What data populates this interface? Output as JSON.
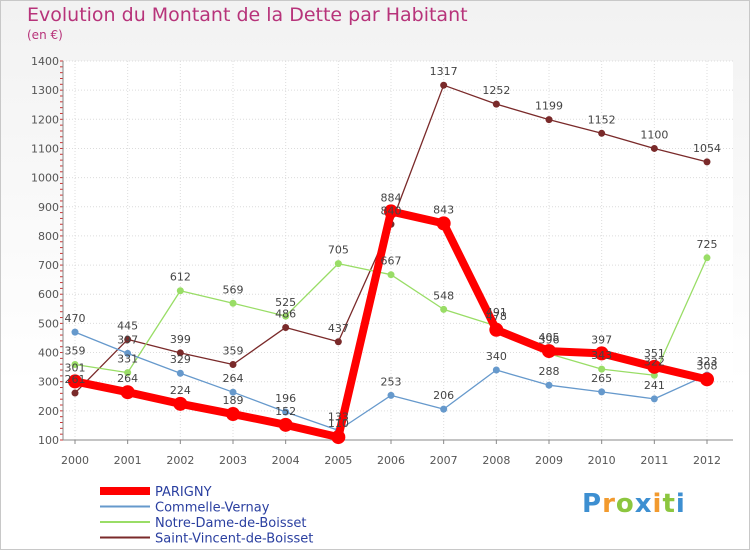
{
  "chart_data": {
    "type": "line",
    "title": "Evolution du Montant de la Dette par Habitant",
    "unit_label": "(en €)",
    "ylim": [
      100,
      1400
    ],
    "y_ticks": [
      100,
      200,
      300,
      400,
      500,
      600,
      700,
      800,
      900,
      1000,
      1100,
      1200,
      1300,
      1400
    ],
    "x": [
      "2000",
      "2001",
      "2002",
      "2003",
      "2004",
      "2005",
      "2006",
      "2007",
      "2008",
      "2009",
      "2010",
      "2011",
      "2012"
    ],
    "grid": true,
    "legend_position": "bottom-left",
    "series": [
      {
        "name": "PARIGNY",
        "color": "#ff0000",
        "values": [
          301,
          264,
          224,
          189,
          152,
          110,
          884,
          843,
          478,
          405,
          397,
          351,
          308
        ]
      },
      {
        "name": "Commelle-Vernay",
        "color": "#6699cc",
        "values": [
          470,
          397,
          329,
          264,
          196,
          133,
          253,
          206,
          340,
          288,
          265,
          241,
          323
        ]
      },
      {
        "name": "Notre-Dame-de-Boisset",
        "color": "#99dd66",
        "values": [
          359,
          331,
          612,
          569,
          525,
          705,
          667,
          548,
          491,
          396,
          343,
          322,
          725
        ]
      },
      {
        "name": "Saint-Vincent-de-Boisset",
        "color": "#7a2a2a",
        "values": [
          261,
          445,
          399,
          359,
          486,
          437,
          840,
          1317,
          1252,
          1199,
          1152,
          1100,
          1054
        ]
      }
    ]
  },
  "brand": {
    "letters": [
      "P",
      "r",
      "o",
      "x",
      "i",
      "t",
      "i"
    ],
    "colors": [
      "#3d8fd1",
      "#f29a2e",
      "#8cc63f",
      "#3d8fd1",
      "#f29a2e",
      "#8cc63f",
      "#3d8fd1"
    ]
  }
}
